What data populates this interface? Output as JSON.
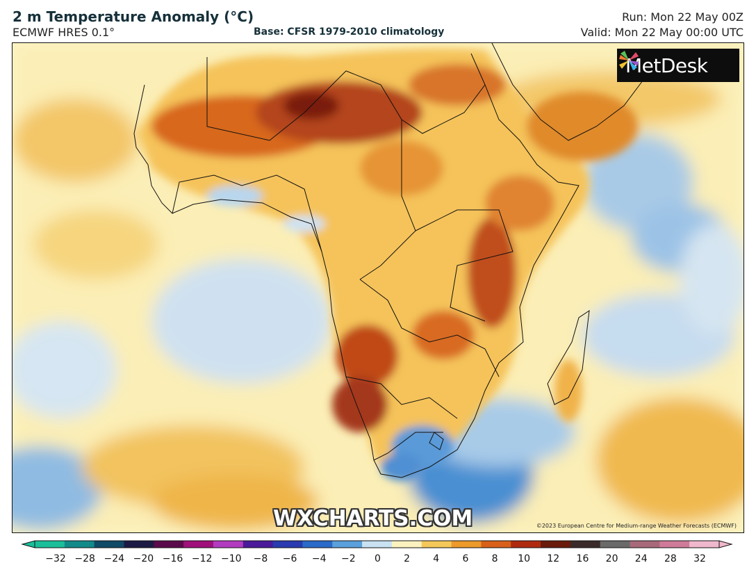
{
  "header": {
    "title": "2 m Temperature Anomaly (°C)",
    "model": "ECMWF HRES 0.1°",
    "base": "Base: CFSR 1979-2010 climatology",
    "run": "Run: Mon 22 May 00Z",
    "valid": "Valid: Mon 22 May 00:00 UTC"
  },
  "logo": {
    "text": "MetDesk",
    "icon": "metdesk-pinwheel-icon"
  },
  "watermark": "WXCHARTS.COM",
  "copyright": "©2023 European Centre for Medium-range Weather Forecasts (ECMWF)",
  "colorbar": {
    "ticks": [
      "−32",
      "−28",
      "−24",
      "−20",
      "−16",
      "−12",
      "−10",
      "−8",
      "−6",
      "−4",
      "−2",
      "0",
      "2",
      "4",
      "6",
      "8",
      "10",
      "12",
      "16",
      "20",
      "24",
      "28",
      "32"
    ],
    "colors": [
      "#1abf9a",
      "#138a8a",
      "#0f4a66",
      "#1b1a45",
      "#5a0a4a",
      "#a0107a",
      "#b23cc0",
      "#4a1a9a",
      "#2a3ab0",
      "#2a6ac8",
      "#5aa0dc",
      "#c8e2f2",
      "#fbf2c0",
      "#f4c85a",
      "#ec9a2a",
      "#d8601a",
      "#b02a10",
      "#6a1a0a",
      "#3a2a2a",
      "#6a6a6a",
      "#a86a7a",
      "#d07a9a",
      "#f0b8cc"
    ]
  },
  "colors": {
    "ocean_base": "#fdf6c8",
    "cold": "#5a98d6",
    "warm": "#f2b23a",
    "hot": "#c8521a",
    "very_hot": "#8a2a10"
  }
}
